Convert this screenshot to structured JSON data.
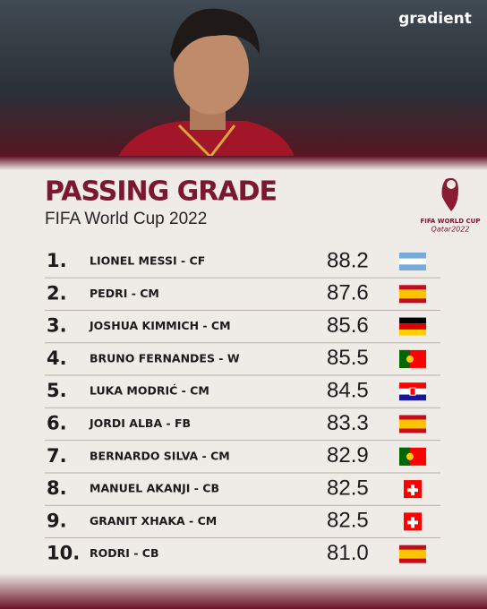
{
  "header": {
    "brand": "gradient",
    "title": "PASSING GRADE",
    "subtitle": "FIFA World Cup 2022",
    "logo": [
      "FIFA WORLD CUP",
      "Qatar2022"
    ]
  },
  "table": {
    "rows": [
      [
        "1.",
        "LIONEL MESSI - CF",
        "88.2"
      ],
      [
        "2.",
        "PEDRI - CM",
        "87.6"
      ],
      [
        "3.",
        "JOSHUA KIMMICH - CM",
        "85.6"
      ],
      [
        "4.",
        "BRUNO FERNANDES - W",
        "85.5"
      ],
      [
        "5.",
        "LUKA MODRIĆ - CM",
        "84.5"
      ],
      [
        "6.",
        "JORDI ALBA - FB",
        "83.3"
      ],
      [
        "7.",
        "BERNARDO SILVA - CM",
        "82.9"
      ],
      [
        "8.",
        "MANUEL AKANJI - CB",
        "82.5"
      ],
      [
        "9.",
        "GRANIT XHAKA - CM",
        "82.5"
      ],
      [
        "10.",
        "RODRI - CB",
        "81.0"
      ]
    ]
  }
}
